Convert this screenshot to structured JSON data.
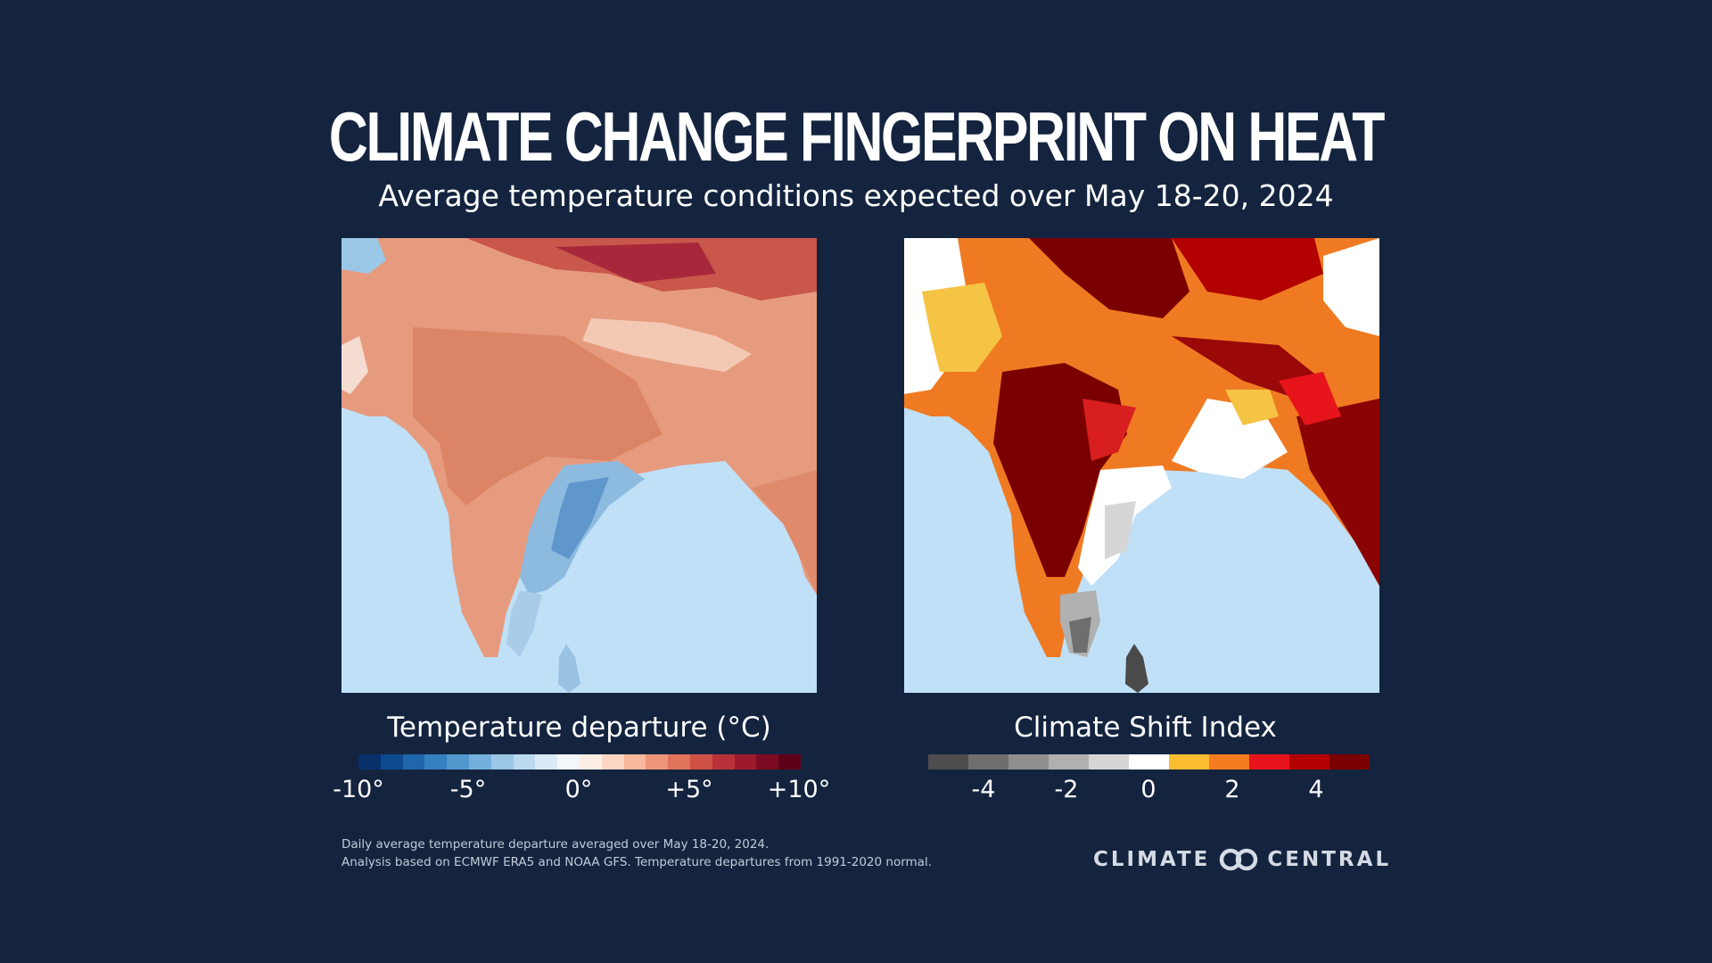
{
  "title": "Climate Change Fingerprint on Heat",
  "subtitle": "Average temperature conditions expected over May 18-20, 2024",
  "left_map": {
    "legend_title": "Temperature departure (°C)",
    "colors": [
      "#08306b",
      "#0d4a8f",
      "#1f66ad",
      "#3580c0",
      "#4f97cd",
      "#74b0db",
      "#9ac7e6",
      "#bcdaef",
      "#dbeaf6",
      "#f3f7fb",
      "#fdeee5",
      "#fbd6c2",
      "#f7b89c",
      "#ee9577",
      "#e1735a",
      "#cf5145",
      "#b83137",
      "#9c1a2c",
      "#7c0a22",
      "#5e0018"
    ],
    "ticks": [
      "-10°",
      "-5°",
      "0°",
      "+5°",
      "+10°"
    ]
  },
  "right_map": {
    "legend_title": "Climate Shift Index",
    "colors": [
      "#4d4d4d",
      "#6e6e6e",
      "#8f8f8f",
      "#b0b0b0",
      "#d6d6d6",
      "#ffffff",
      "#fbbd30",
      "#f57c1f",
      "#e8141c",
      "#b30000",
      "#7a0000"
    ],
    "ticks": [
      "-4",
      "-2",
      "0",
      "2",
      "4"
    ]
  },
  "footnote": {
    "line1": "Daily average temperature departure averaged over May 18-20, 2024.",
    "line2": "Analysis based on ECMWF ERA5 and NOAA GFS. Temperature departures from 1991-2020 normal."
  },
  "brand": {
    "word1": "CLIMATE",
    "word2": "CENTRAL",
    "logo_icon": "linked-circles-icon"
  }
}
